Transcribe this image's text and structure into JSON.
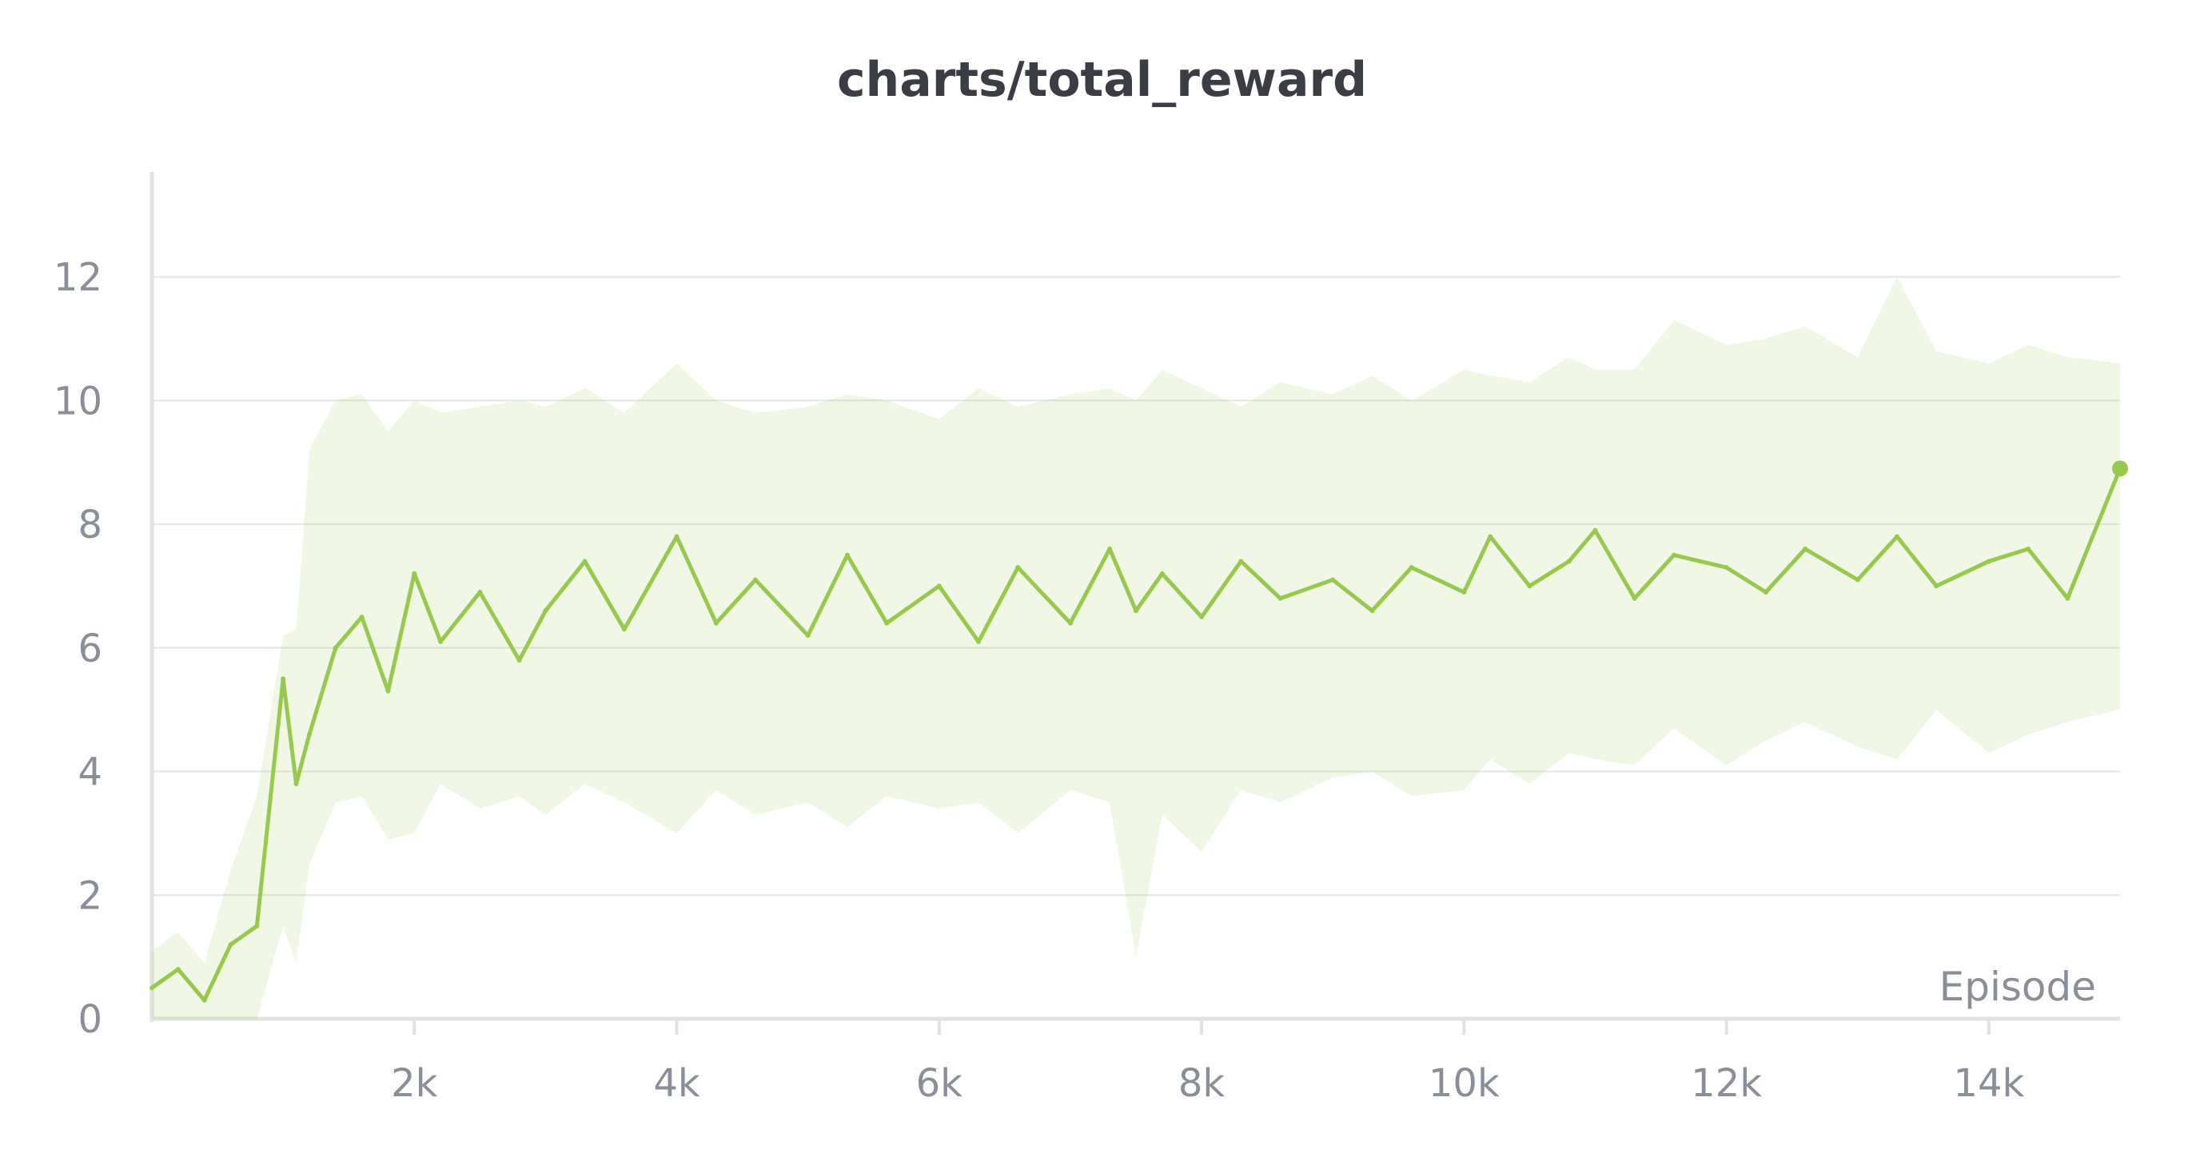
{
  "chart_data": {
    "type": "line",
    "title": "charts/total_reward",
    "xlabel": "Episode",
    "ylabel": "",
    "xlim": [
      0,
      15000
    ],
    "ylim": [
      0,
      13.7
    ],
    "x_ticks": [
      2000,
      4000,
      6000,
      8000,
      10000,
      12000,
      14000
    ],
    "x_tick_labels": [
      "2k",
      "4k",
      "6k",
      "8k",
      "10k",
      "12k",
      "14k"
    ],
    "y_ticks": [
      0,
      2,
      4,
      6,
      8,
      10,
      12
    ],
    "y_tick_labels": [
      "0",
      "2",
      "4",
      "6",
      "8",
      "10",
      "12"
    ],
    "grid": true,
    "legend": "none",
    "colors": {
      "line": "#98c94f",
      "band": "#98c94f",
      "grid": "#e6e6e6",
      "axis": "#e2e2e2",
      "text": "#8a8e98",
      "title": "#3a3d44"
    },
    "series": [
      {
        "x": [
          0,
          200,
          400,
          600,
          800,
          1000,
          1100,
          1200,
          1400,
          1600,
          1800,
          2000,
          2200,
          2500,
          2800,
          3000,
          3300,
          3600,
          4000,
          4300,
          4600,
          5000,
          5300,
          5600,
          6000,
          6300,
          6600,
          7000,
          7300,
          7500,
          7700,
          8000,
          8300,
          8600,
          9000,
          9300,
          9600,
          10000,
          10200,
          10500,
          10800,
          11000,
          11300,
          11600,
          12000,
          12300,
          12600,
          13000,
          13300,
          13600,
          14000,
          14300,
          14600,
          15000
        ],
        "values": [
          0.5,
          0.8,
          0.3,
          1.2,
          1.5,
          5.5,
          3.8,
          4.6,
          6.0,
          6.5,
          5.3,
          7.2,
          6.1,
          6.9,
          5.8,
          6.6,
          7.4,
          6.3,
          7.8,
          6.4,
          7.1,
          6.2,
          7.5,
          6.4,
          7.0,
          6.1,
          7.3,
          6.4,
          7.6,
          6.6,
          7.2,
          6.5,
          7.4,
          6.8,
          7.1,
          6.6,
          7.3,
          6.9,
          7.8,
          7.0,
          7.4,
          7.9,
          6.8,
          7.5,
          7.3,
          6.9,
          7.6,
          7.1,
          7.8,
          7.0,
          7.4,
          7.6,
          6.8,
          8.9
        ],
        "min": [
          0,
          0,
          0,
          0,
          0,
          1.5,
          0.9,
          2.5,
          3.5,
          3.6,
          2.9,
          3.0,
          3.8,
          3.4,
          3.6,
          3.3,
          3.8,
          3.5,
          3.0,
          3.7,
          3.3,
          3.5,
          3.1,
          3.6,
          3.4,
          3.5,
          3.0,
          3.7,
          3.5,
          1.0,
          3.3,
          2.7,
          3.7,
          3.5,
          3.9,
          4.0,
          3.6,
          3.7,
          4.2,
          3.8,
          4.3,
          4.2,
          4.1,
          4.7,
          4.1,
          4.5,
          4.8,
          4.4,
          4.2,
          5.0,
          4.3,
          4.6,
          4.8,
          5.0
        ],
        "max": [
          1.1,
          1.4,
          0.9,
          2.4,
          3.6,
          6.2,
          6.3,
          9.2,
          10.0,
          10.1,
          9.5,
          10.0,
          9.8,
          9.9,
          10.0,
          9.9,
          10.2,
          9.8,
          10.6,
          10.0,
          9.8,
          9.9,
          10.1,
          10.0,
          9.7,
          10.2,
          9.9,
          10.1,
          10.2,
          10.0,
          10.5,
          10.2,
          9.9,
          10.3,
          10.1,
          10.4,
          10.0,
          10.5,
          10.4,
          10.3,
          10.7,
          10.5,
          10.5,
          11.3,
          10.9,
          11.0,
          11.2,
          10.7,
          12.0,
          10.8,
          10.6,
          10.9,
          10.7,
          10.6
        ]
      }
    ]
  }
}
